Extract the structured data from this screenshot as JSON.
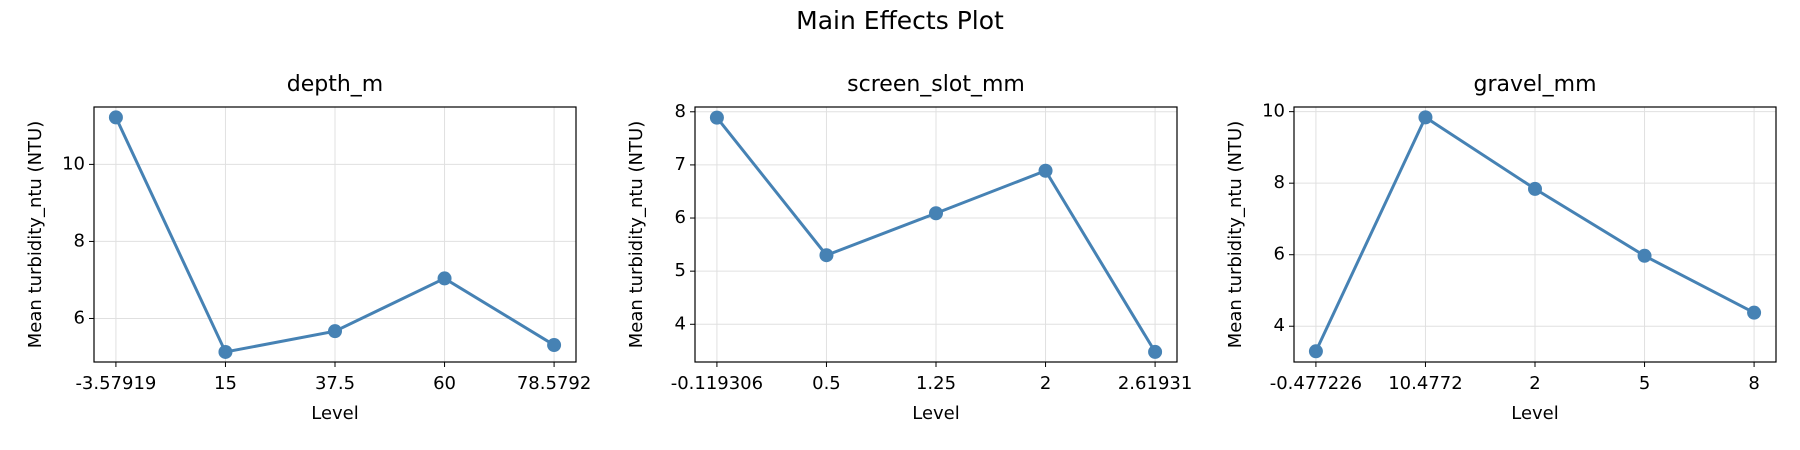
{
  "title": "Main Effects Plot",
  "chart_data": [
    {
      "type": "line",
      "title": "depth_m",
      "x_label": "Level",
      "y_label": "Mean turbidity_ntu (NTU)",
      "categories": [
        "-3.57919",
        "15",
        "37.5",
        "60",
        "78.5792"
      ],
      "values": [
        11.22,
        5.13,
        5.67,
        7.04,
        5.31
      ],
      "color": "#4682b4",
      "ylim": [
        4.87,
        11.49
      ],
      "yticks": [
        6,
        8,
        10
      ],
      "grid": true
    },
    {
      "type": "line",
      "title": "screen_slot_mm",
      "x_label": "Level",
      "y_label": "Mean turbidity_ntu (NTU)",
      "categories": [
        "-0.119306",
        "0.5",
        "1.25",
        "2",
        "2.61931"
      ],
      "values": [
        7.89,
        5.3,
        6.09,
        6.89,
        3.48
      ],
      "color": "#4682b4",
      "ylim": [
        3.29,
        8.09
      ],
      "yticks": [
        4,
        5,
        6,
        7,
        8
      ],
      "grid": true
    },
    {
      "type": "line",
      "title": "gravel_mm",
      "x_label": "Level",
      "y_label": "Mean turbidity_ntu (NTU)",
      "categories": [
        "-0.477226",
        "10.4772",
        "2",
        "5",
        "8"
      ],
      "values": [
        3.3,
        9.84,
        7.84,
        5.97,
        4.38
      ],
      "color": "#4682b4",
      "ylim": [
        3.0,
        10.13
      ],
      "yticks": [
        4,
        6,
        8,
        10
      ],
      "grid": true
    }
  ]
}
